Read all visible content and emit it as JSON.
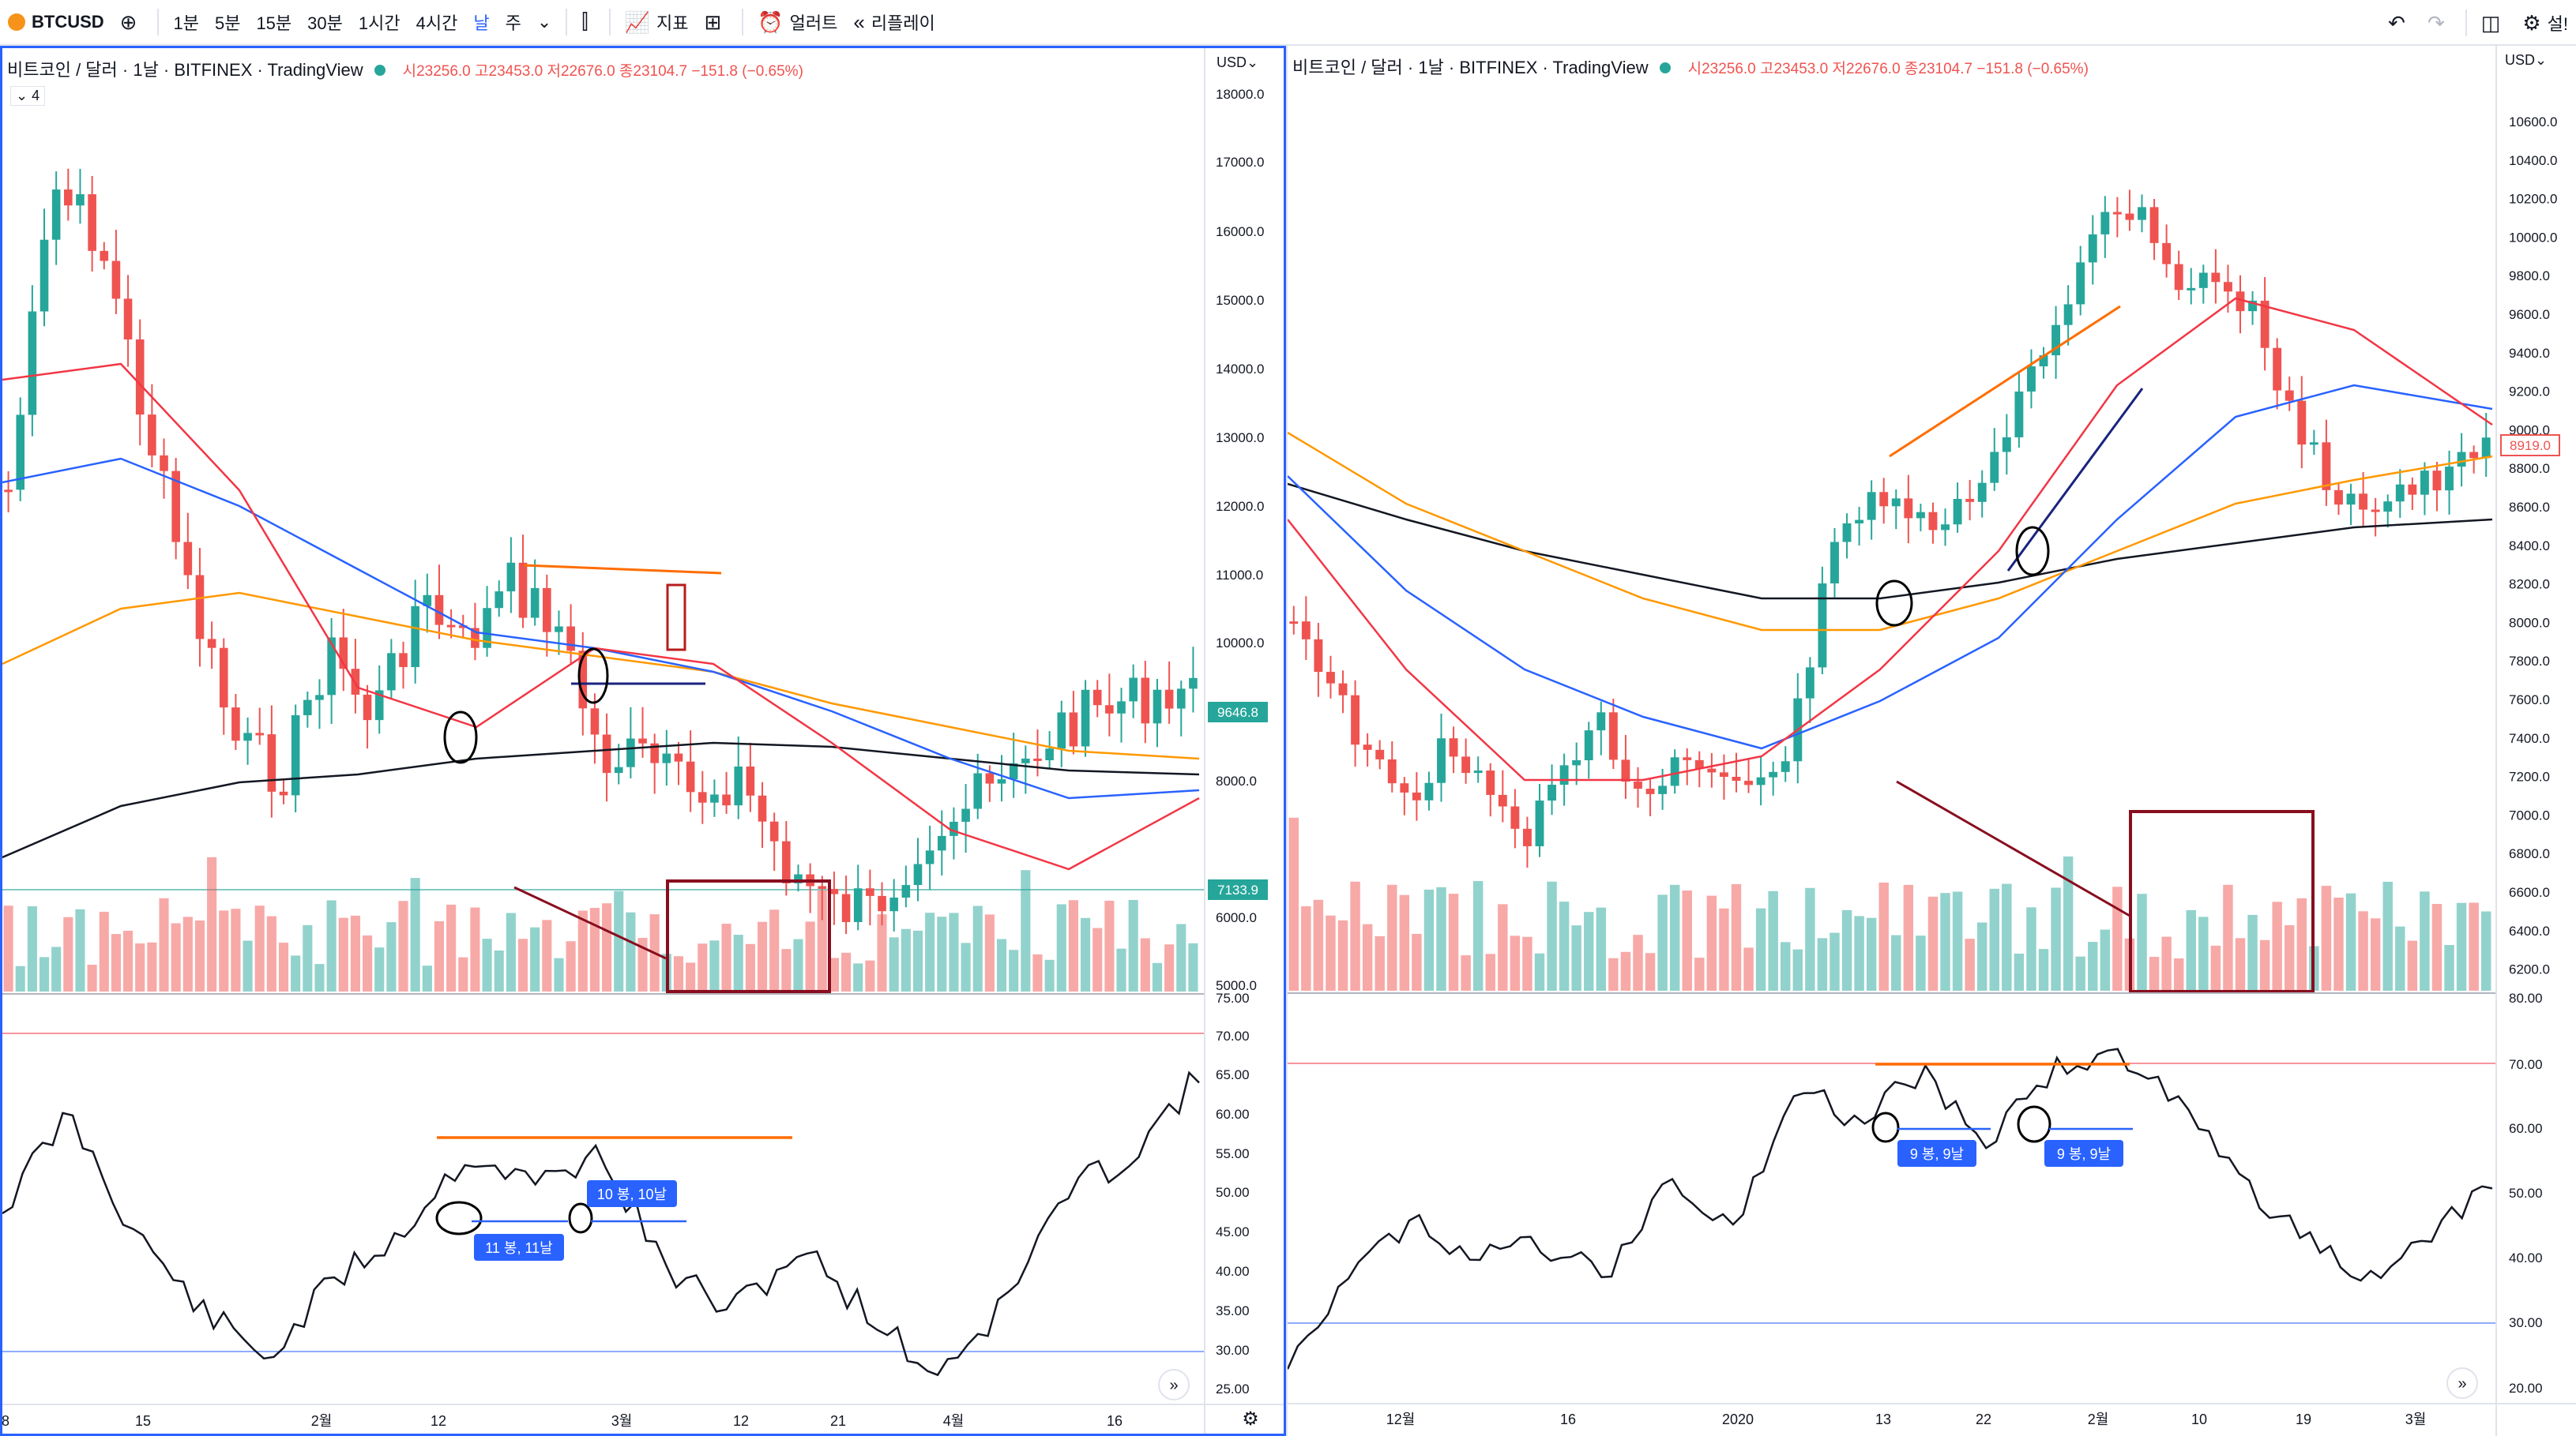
{
  "toolbar": {
    "symbol": "BTCUSD",
    "intervals": [
      "1분",
      "5분",
      "15분",
      "30분",
      "1시간",
      "4시간",
      "날",
      "주"
    ],
    "active_interval": "날",
    "indicators_label": "지표",
    "alerts_label": "얼러트",
    "replay_label": "리플레이",
    "right_label": "설!"
  },
  "left_pane": {
    "title": "비트코인 / 달러 · 1날 · BITFINEX · TradingView",
    "ohlc": "시23256.0 고23453.0 저22676.0 종23104.7 −151.8 (−0.65%)",
    "collapse": "4",
    "currency": "USD",
    "price_axis": [
      "18000.0",
      "17000.0",
      "16000.0",
      "15000.0",
      "14000.0",
      "13000.0",
      "12000.0",
      "11000.0",
      "10000.0",
      "9000.0",
      "8000.0",
      "6000.0",
      "5000.0"
    ],
    "price_tags": [
      "9646.8",
      "7133.9"
    ],
    "rsi_axis": [
      "75.00",
      "70.00",
      "65.00",
      "60.00",
      "55.00",
      "50.00",
      "45.00",
      "40.00",
      "35.00",
      "30.00",
      "25.00"
    ],
    "time_axis": [
      "8",
      "15",
      "2월",
      "12",
      "3월",
      "12",
      "21",
      "4월",
      "16"
    ],
    "annotations": [
      "11 봉, 11날",
      "10 봉, 10날"
    ]
  },
  "right_pane": {
    "title": "비트코인 / 달러 · 1날 · BITFINEX · TradingView",
    "ohlc": "시23256.0 고23453.0 저22676.0 종23104.7 −151.8 (−0.65%)",
    "currency": "USD",
    "price_axis": [
      "10600.0",
      "10400.0",
      "10200.0",
      "10000.0",
      "9800.0",
      "9600.0",
      "9400.0",
      "9200.0",
      "9000.0",
      "8800.0",
      "8600.0",
      "8400.0",
      "8200.0",
      "8000.0",
      "7800.0",
      "7600.0",
      "7400.0",
      "7200.0",
      "7000.0",
      "6800.0",
      "6600.0",
      "6400.0",
      "6200.0"
    ],
    "price_tag": "8919.0",
    "rsi_axis": [
      "80.00",
      "70.00",
      "60.00",
      "50.00",
      "40.00",
      "30.00",
      "20.00"
    ],
    "time_axis": [
      "12월",
      "16",
      "2020",
      "13",
      "22",
      "2월",
      "10",
      "19",
      "3월"
    ],
    "annotations": [
      "9 봉, 9날",
      "9 봉, 9날"
    ]
  },
  "colors": {
    "up": "#26a69a",
    "down": "#ef5350",
    "ema_red": "#f23645",
    "ema_blue": "#2962ff",
    "ema_orange": "#ff9800",
    "ma_black": "#131722",
    "annotation_box": "#880e1f",
    "label_bg": "#2962ff"
  }
}
